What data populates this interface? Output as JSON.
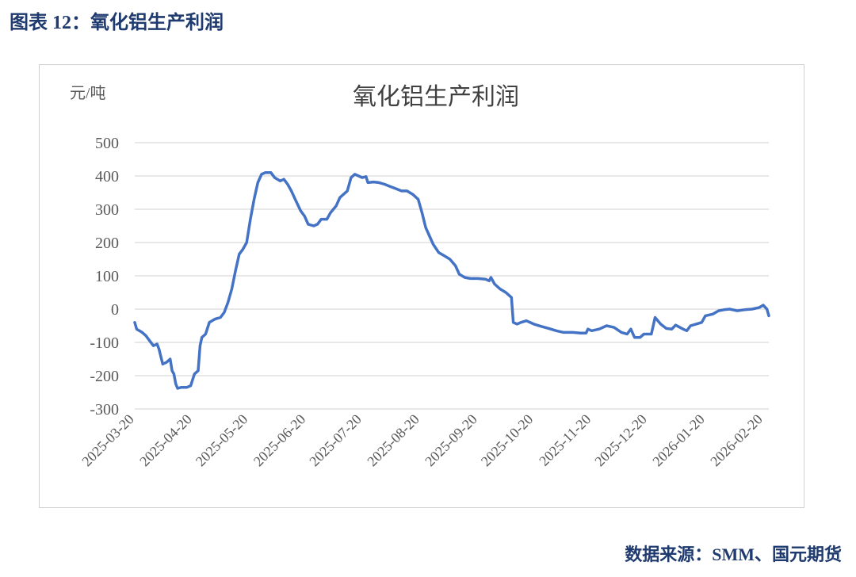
{
  "caption": "图表 12：氧化铝生产利润",
  "source": "数据来源：SMM、国元期货",
  "colors": {
    "line": "#4472C4",
    "grid": "#d9d9d9",
    "text": "#595959",
    "caption": "#1f3a6e"
  },
  "chart_data": {
    "type": "line",
    "title": "氧化铝生产利润",
    "ylabel": "元/吨",
    "xlabel": "",
    "ylim": [
      -300,
      500
    ],
    "yticks": [
      500,
      400,
      300,
      200,
      100,
      0,
      -100,
      -200,
      -300
    ],
    "ytick_labels": [
      "500",
      "400",
      "300",
      "200",
      "100",
      "0",
      "-100",
      "-200",
      "-300"
    ],
    "xticks": [
      "2025-03-20",
      "2025-04-20",
      "2025-05-20",
      "2025-06-20",
      "2025-07-20",
      "2025-08-20",
      "2025-09-20",
      "2025-10-20",
      "2025-11-20",
      "2025-12-20",
      "2026-01-20",
      "2026-02-20"
    ],
    "grid": true,
    "legend": "none",
    "series": [
      {
        "name": "",
        "points": [
          [
            "2025-03-20",
            -40
          ],
          [
            "2025-03-21",
            -60
          ],
          [
            "2025-03-24",
            -70
          ],
          [
            "2025-03-26",
            -80
          ],
          [
            "2025-03-28",
            -95
          ],
          [
            "2025-03-30",
            -110
          ],
          [
            "2025-04-01",
            -105
          ],
          [
            "2025-04-02",
            -120
          ],
          [
            "2025-04-04",
            -165
          ],
          [
            "2025-04-06",
            -160
          ],
          [
            "2025-04-08",
            -150
          ],
          [
            "2025-04-09",
            -185
          ],
          [
            "2025-04-10",
            -195
          ],
          [
            "2025-04-11",
            -225
          ],
          [
            "2025-04-12",
            -238
          ],
          [
            "2025-04-14",
            -235
          ],
          [
            "2025-04-17",
            -235
          ],
          [
            "2025-04-19",
            -230
          ],
          [
            "2025-04-21",
            -195
          ],
          [
            "2025-04-23",
            -185
          ],
          [
            "2025-04-24",
            -110
          ],
          [
            "2025-04-25",
            -85
          ],
          [
            "2025-04-27",
            -75
          ],
          [
            "2025-04-29",
            -40
          ],
          [
            "2025-05-02",
            -30
          ],
          [
            "2025-05-05",
            -25
          ],
          [
            "2025-05-07",
            -10
          ],
          [
            "2025-05-09",
            20
          ],
          [
            "2025-05-11",
            60
          ],
          [
            "2025-05-13",
            115
          ],
          [
            "2025-05-15",
            165
          ],
          [
            "2025-05-17",
            180
          ],
          [
            "2025-05-19",
            200
          ],
          [
            "2025-05-21",
            270
          ],
          [
            "2025-05-23",
            330
          ],
          [
            "2025-05-25",
            380
          ],
          [
            "2025-05-27",
            405
          ],
          [
            "2025-05-29",
            410
          ],
          [
            "2025-06-01",
            410
          ],
          [
            "2025-06-03",
            395
          ],
          [
            "2025-06-06",
            385
          ],
          [
            "2025-06-08",
            390
          ],
          [
            "2025-06-10",
            375
          ],
          [
            "2025-06-12",
            355
          ],
          [
            "2025-06-14",
            330
          ],
          [
            "2025-06-17",
            295
          ],
          [
            "2025-06-19",
            280
          ],
          [
            "2025-06-21",
            255
          ],
          [
            "2025-06-24",
            250
          ],
          [
            "2025-06-26",
            255
          ],
          [
            "2025-06-28",
            270
          ],
          [
            "2025-07-01",
            270
          ],
          [
            "2025-07-03",
            290
          ],
          [
            "2025-07-06",
            310
          ],
          [
            "2025-07-08",
            335
          ],
          [
            "2025-07-10",
            345
          ],
          [
            "2025-07-12",
            355
          ],
          [
            "2025-07-14",
            395
          ],
          [
            "2025-07-16",
            405
          ],
          [
            "2025-07-18",
            400
          ],
          [
            "2025-07-20",
            395
          ],
          [
            "2025-07-22",
            398
          ],
          [
            "2025-07-23",
            380
          ],
          [
            "2025-07-26",
            382
          ],
          [
            "2025-07-29",
            380
          ],
          [
            "2025-08-01",
            375
          ],
          [
            "2025-08-04",
            368
          ],
          [
            "2025-08-07",
            362
          ],
          [
            "2025-08-10",
            355
          ],
          [
            "2025-08-13",
            355
          ],
          [
            "2025-08-16",
            345
          ],
          [
            "2025-08-19",
            330
          ],
          [
            "2025-08-21",
            290
          ],
          [
            "2025-08-23",
            245
          ],
          [
            "2025-08-25",
            220
          ],
          [
            "2025-08-27",
            195
          ],
          [
            "2025-08-30",
            170
          ],
          [
            "2025-09-02",
            160
          ],
          [
            "2025-09-05",
            150
          ],
          [
            "2025-09-08",
            130
          ],
          [
            "2025-09-10",
            105
          ],
          [
            "2025-09-13",
            95
          ],
          [
            "2025-09-16",
            92
          ],
          [
            "2025-09-20",
            92
          ],
          [
            "2025-09-24",
            90
          ],
          [
            "2025-09-26",
            85
          ],
          [
            "2025-09-27",
            95
          ],
          [
            "2025-09-29",
            75
          ],
          [
            "2025-10-02",
            60
          ],
          [
            "2025-10-05",
            50
          ],
          [
            "2025-10-08",
            35
          ],
          [
            "2025-10-09",
            -40
          ],
          [
            "2025-10-11",
            -45
          ],
          [
            "2025-10-13",
            -40
          ],
          [
            "2025-10-16",
            -35
          ],
          [
            "2025-10-20",
            -45
          ],
          [
            "2025-10-24",
            -52
          ],
          [
            "2025-10-28",
            -58
          ],
          [
            "2025-11-01",
            -65
          ],
          [
            "2025-11-05",
            -70
          ],
          [
            "2025-11-10",
            -70
          ],
          [
            "2025-11-14",
            -72
          ],
          [
            "2025-11-17",
            -72
          ],
          [
            "2025-11-18",
            -60
          ],
          [
            "2025-11-20",
            -65
          ],
          [
            "2025-11-24",
            -60
          ],
          [
            "2025-11-28",
            -50
          ],
          [
            "2025-12-02",
            -55
          ],
          [
            "2025-12-06",
            -70
          ],
          [
            "2025-12-09",
            -75
          ],
          [
            "2025-12-11",
            -60
          ],
          [
            "2025-12-13",
            -85
          ],
          [
            "2025-12-16",
            -85
          ],
          [
            "2025-12-18",
            -75
          ],
          [
            "2025-12-22",
            -75
          ],
          [
            "2025-12-24",
            -25
          ],
          [
            "2025-12-27",
            -45
          ],
          [
            "2025-12-30",
            -58
          ],
          [
            "2026-01-02",
            -60
          ],
          [
            "2026-01-04",
            -48
          ],
          [
            "2026-01-08",
            -60
          ],
          [
            "2026-01-10",
            -65
          ],
          [
            "2026-01-12",
            -50
          ],
          [
            "2026-01-15",
            -45
          ],
          [
            "2026-01-18",
            -40
          ],
          [
            "2026-01-20",
            -20
          ],
          [
            "2026-01-24",
            -15
          ],
          [
            "2026-01-27",
            -5
          ],
          [
            "2026-01-30",
            -2
          ],
          [
            "2026-02-02",
            0
          ],
          [
            "2026-02-06",
            -5
          ],
          [
            "2026-02-10",
            -2
          ],
          [
            "2026-02-14",
            0
          ],
          [
            "2026-02-18",
            5
          ],
          [
            "2026-02-20",
            12
          ],
          [
            "2026-02-22",
            0
          ],
          [
            "2026-02-23",
            -20
          ]
        ]
      }
    ]
  }
}
